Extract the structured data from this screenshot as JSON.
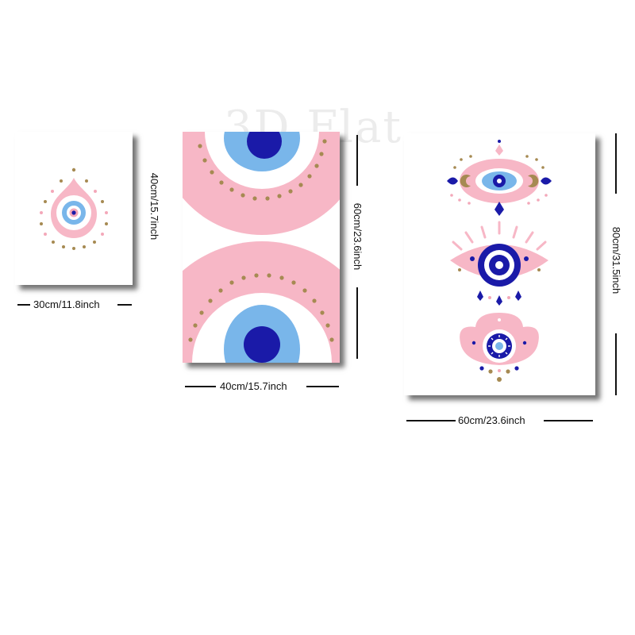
{
  "watermark": "3D Flat",
  "posters": [
    {
      "width_label": "30cm/11.8inch",
      "height_label": "40cm/15.7inch"
    },
    {
      "width_label": "40cm/15.7inch",
      "height_label": "60cm/23.6inch"
    },
    {
      "width_label": "60cm/23.6inch",
      "height_label": "80cm/31.5inch"
    }
  ],
  "colors": {
    "pink": "#f7b7c6",
    "light_blue": "#79b6ea",
    "navy": "#1a1aa8",
    "gold": "#a68a52",
    "white": "#ffffff"
  }
}
